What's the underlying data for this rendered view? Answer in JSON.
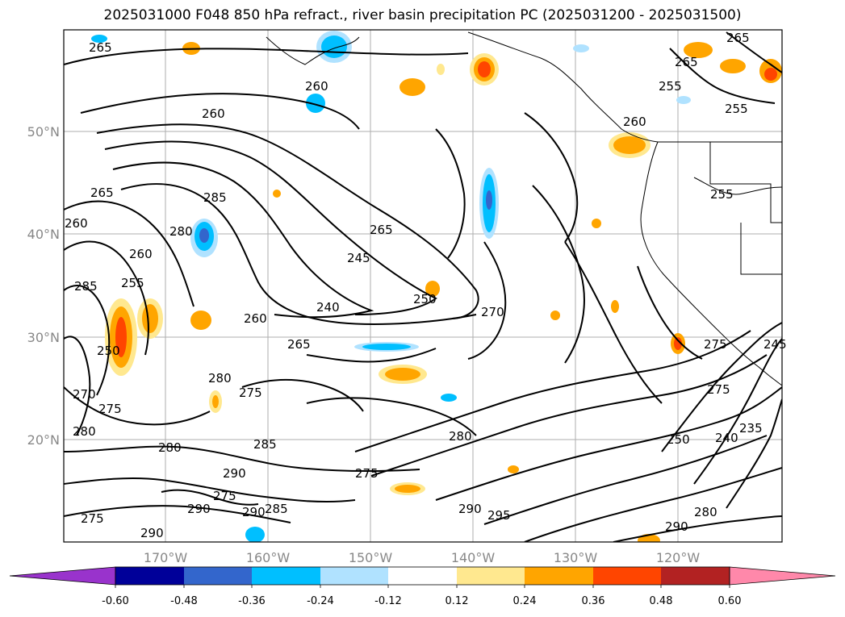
{
  "title": "2025031000 F048 850 hPa refract., river basin precipitation PC (2025031200 - 2025031500)",
  "lat_labels": [
    "50°N",
    "40°N",
    "30°N",
    "20°N"
  ],
  "lon_labels": [
    "170°W",
    "160°W",
    "150°W",
    "140°W",
    "130°W",
    "120°W"
  ],
  "colorbar": {
    "colors": [
      "#9933cc",
      "#000099",
      "#3366cc",
      "#00bfff",
      "#b0e2ff",
      "#ffffff",
      "#ffe88f",
      "#ffa500",
      "#ff4500",
      "#b22222",
      "#ff88aa"
    ],
    "labels": [
      "-0.60",
      "-0.48",
      "-0.36",
      "-0.24",
      "-0.12",
      "0.12",
      "0.24",
      "0.36",
      "0.48",
      "0.60"
    ]
  },
  "contour_labels": [
    "265",
    "260",
    "260",
    "265",
    "255",
    "255",
    "260",
    "265",
    "255",
    "260",
    "285",
    "280",
    "285",
    "265",
    "245",
    "250",
    "240",
    "270",
    "260",
    "265",
    "255",
    "275",
    "275",
    "280",
    "275",
    "280",
    "290",
    "285",
    "280",
    "275",
    "290",
    "290",
    "275",
    "285",
    "275",
    "295",
    "290",
    "280",
    "250",
    "240",
    "235",
    "290",
    "280",
    "250",
    "265",
    "260",
    "245",
    "275",
    "270",
    "290"
  ]
}
